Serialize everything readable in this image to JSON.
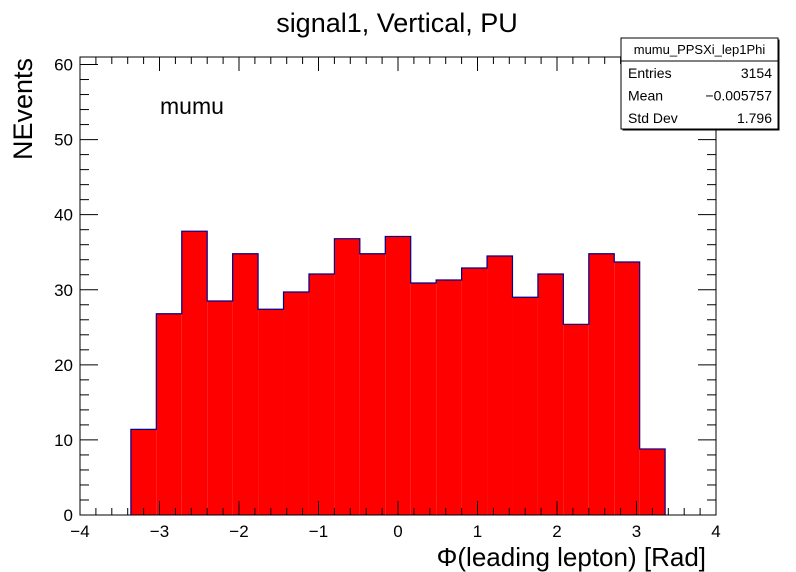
{
  "chart_data": {
    "type": "bar",
    "title": "signal1, Vertical, PU",
    "xlabel": "Φ(leading lepton) [Rad]",
    "ylabel": "NEvents",
    "xlim": [
      -4,
      4
    ],
    "ylim": [
      0,
      61
    ],
    "x_ticks": [
      "−4",
      "−3",
      "−2",
      "−1",
      "0",
      "1",
      "2",
      "3",
      "4"
    ],
    "y_ticks": [
      "0",
      "10",
      "20",
      "30",
      "40",
      "50",
      "60"
    ],
    "bin_edges": [
      -3.36,
      -3.04,
      -2.72,
      -2.4,
      -2.08,
      -1.76,
      -1.44,
      -1.12,
      -0.8,
      -0.48,
      -0.16,
      0.16,
      0.48,
      0.8,
      1.12,
      1.44,
      1.76,
      2.08,
      2.4,
      2.72,
      3.04,
      3.36
    ],
    "values": [
      11.4,
      26.8,
      37.8,
      28.5,
      34.8,
      27.4,
      29.7,
      32.1,
      36.8,
      34.8,
      37.1,
      30.9,
      31.3,
      32.9,
      34.5,
      29.0,
      32.1,
      25.4,
      34.8,
      33.7,
      8.8
    ],
    "fill_color": "#ff0000",
    "line_color": "#00008b",
    "annotation": "mumu",
    "grid": false,
    "stats_box": {
      "name": "mumu_PPSXi_lep1Phi",
      "rows": [
        {
          "label": "Entries",
          "value": "3154"
        },
        {
          "label": "Mean",
          "value": "−0.005757"
        },
        {
          "label": "Std Dev",
          "value": "1.796"
        }
      ]
    }
  }
}
